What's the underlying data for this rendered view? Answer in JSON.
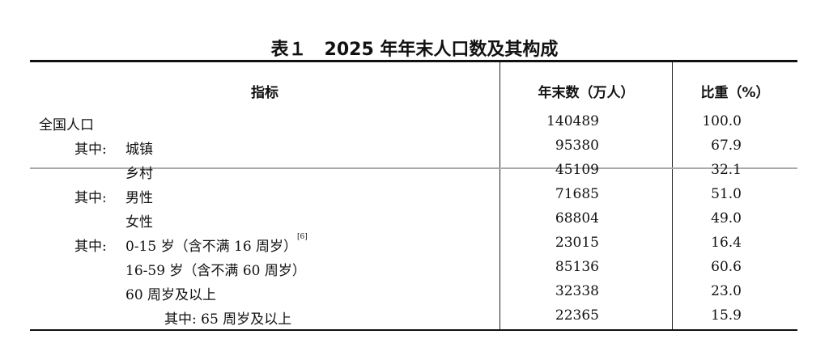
{
  "title": "表１　2025 年年末人口数及其构成",
  "headers": {
    "indicator": "指标",
    "count": "年末数（万人）",
    "share": "比重（%）"
  },
  "rows": [
    {
      "prefix": "",
      "label": "全国人口",
      "count": "140489",
      "share": "100.0",
      "level": 0
    },
    {
      "prefix": "其中:",
      "label": "城镇",
      "count": "95380",
      "share": "67.9",
      "level": 1
    },
    {
      "prefix": "",
      "label": "乡村",
      "count": "45109",
      "share": "32.1",
      "level": 1
    },
    {
      "prefix": "其中:",
      "label": "男性",
      "count": "71685",
      "share": "51.0",
      "level": 1
    },
    {
      "prefix": "",
      "label": "女性",
      "count": "68804",
      "share": "49.0",
      "level": 1
    },
    {
      "prefix": "其中:",
      "label": "0-15 岁（含不满 16 周岁）",
      "note": "[6]",
      "count": "23015",
      "share": "16.4",
      "level": 1
    },
    {
      "prefix": "",
      "label": "16-59 岁（含不满 60 周岁）",
      "count": "85136",
      "share": "60.6",
      "level": 1
    },
    {
      "prefix": "",
      "label": "60 周岁及以上",
      "count": "32338",
      "share": "23.0",
      "level": 1
    },
    {
      "prefix": "",
      "label": "其中: 65 周岁及以上",
      "count": "22365",
      "share": "15.9",
      "level": 2
    }
  ]
}
